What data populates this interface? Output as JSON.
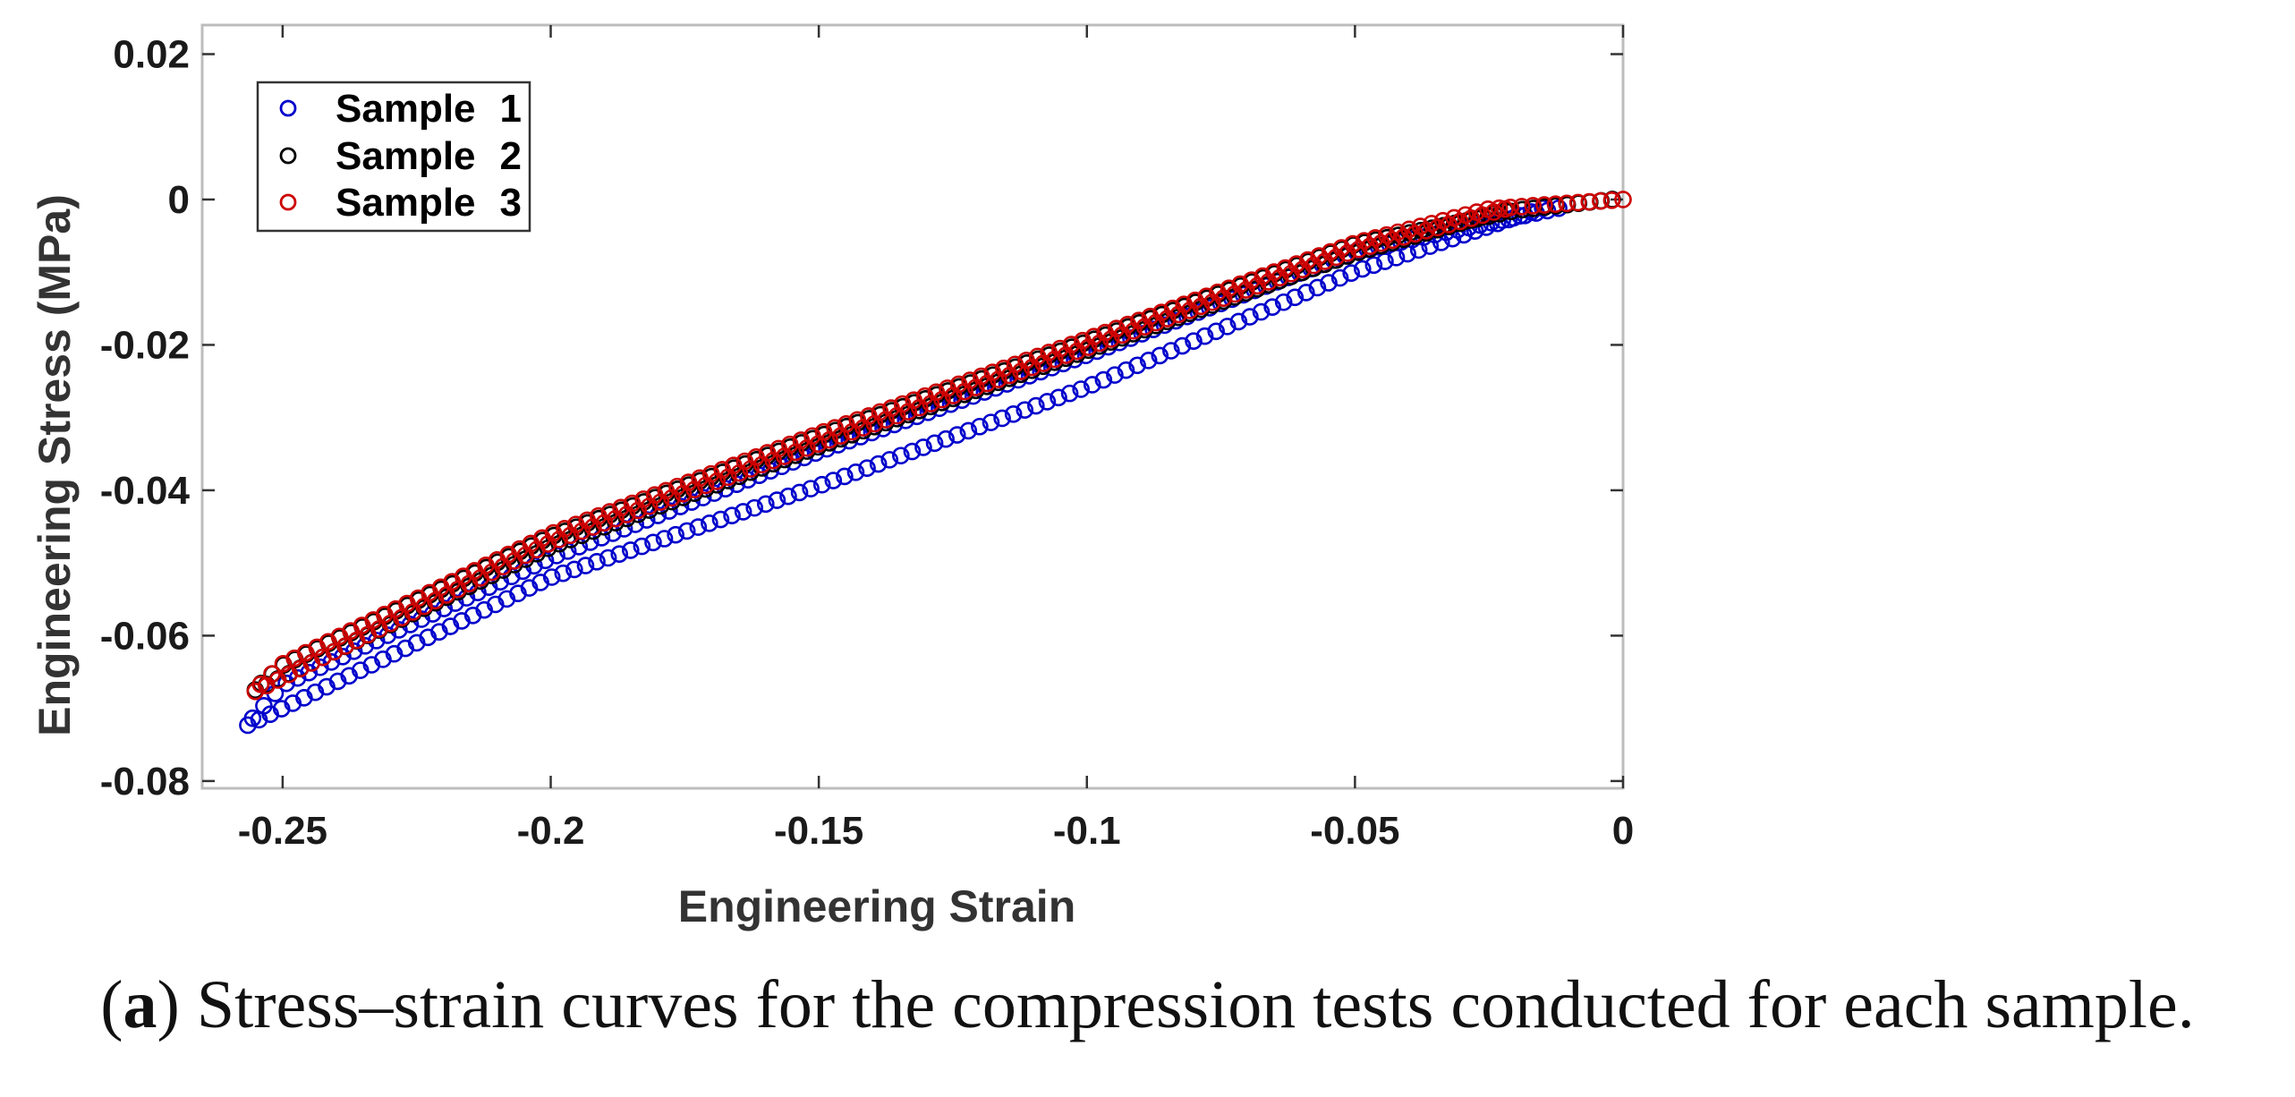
{
  "chart_data": {
    "type": "scatter",
    "title": "",
    "xlabel": "Engineering Strain",
    "ylabel": "Engineering Stress (MPa)",
    "xlim": [
      -0.265,
      0.0
    ],
    "ylim": [
      -0.081,
      0.024
    ],
    "xticks": [
      -0.25,
      -0.2,
      -0.15,
      -0.1,
      -0.05,
      0
    ],
    "xtick_labels": [
      "-0.25",
      "-0.2",
      "-0.15",
      "-0.1",
      "-0.05",
      "0"
    ],
    "yticks": [
      0.02,
      0,
      -0.02,
      -0.04,
      -0.06,
      -0.08
    ],
    "ytick_labels": [
      "0.02",
      "0",
      "-0.02",
      "-0.04",
      "-0.06",
      "-0.08"
    ],
    "grid": false,
    "legend_position": "top-left",
    "marker": "open-circle",
    "series": [
      {
        "name": "Sample 1",
        "legend_label": "Sample",
        "legend_number": "1",
        "color": "#0000cc",
        "loading": {
          "x": [
            -0.012,
            -0.05,
            -0.1,
            -0.15,
            -0.2,
            -0.25,
            -0.257
          ],
          "y": [
            -0.0012,
            -0.0072,
            -0.0214,
            -0.0347,
            -0.0493,
            -0.0668,
            -0.0725
          ]
        },
        "unloading": {
          "x": [
            -0.257,
            -0.2,
            -0.15,
            -0.1,
            -0.05,
            -0.015
          ],
          "y": [
            -0.0725,
            -0.052,
            -0.0394,
            -0.0258,
            -0.0099,
            -0.0012
          ]
        }
      },
      {
        "name": "Sample 2",
        "legend_label": "Sample",
        "legend_number": "2",
        "color": "#000000",
        "loading": {
          "x": [
            -0.002,
            -0.02,
            -0.05,
            -0.1,
            -0.15,
            -0.2,
            -0.25,
            -0.256
          ],
          "y": [
            0.0,
            -0.0015,
            -0.0062,
            -0.0196,
            -0.0326,
            -0.0464,
            -0.0641,
            -0.0678
          ]
        },
        "unloading": {
          "x": [
            -0.256,
            -0.2,
            -0.15,
            -0.1,
            -0.05,
            -0.022
          ],
          "y": [
            -0.0678,
            -0.0478,
            -0.034,
            -0.0208,
            -0.0074,
            -0.0015
          ]
        }
      },
      {
        "name": "Sample 3",
        "legend_label": "Sample",
        "legend_number": "3",
        "color": "#cc0000",
        "loading": {
          "x": [
            0.0,
            -0.01,
            -0.025,
            -0.05,
            -0.1,
            -0.15,
            -0.2,
            -0.25,
            -0.256
          ],
          "y": [
            0.0,
            -0.0005,
            -0.0013,
            -0.006,
            -0.0192,
            -0.0322,
            -0.046,
            -0.0639,
            -0.068
          ]
        },
        "unloading": {
          "x": [
            -0.256,
            -0.2,
            -0.15,
            -0.1,
            -0.05,
            -0.022
          ],
          "y": [
            -0.068,
            -0.0472,
            -0.0336,
            -0.0204,
            -0.007,
            -0.0013
          ]
        }
      }
    ]
  },
  "caption": {
    "label": "a",
    "text": " Stress–strain curves for the compression tests conducted for each sample."
  }
}
